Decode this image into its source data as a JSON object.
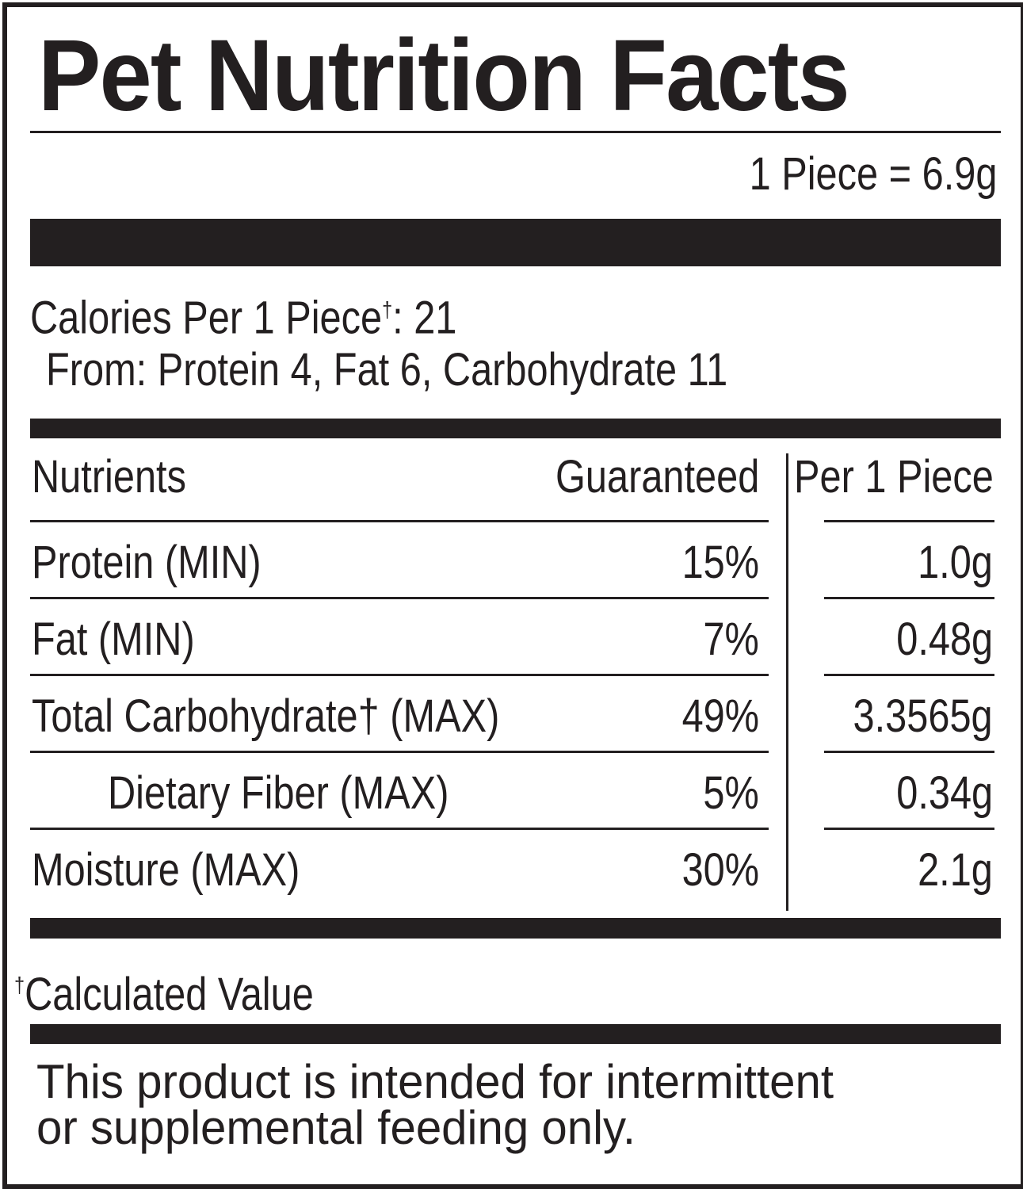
{
  "title": "Pet Nutrition Facts",
  "serving": "1 Piece = 6.9g",
  "calories": {
    "line": "Calories Per 1 Piece",
    "dagger": "†",
    "value": ": 21",
    "from": "From: Protein 4, Fat 6, Carbohydrate 11"
  },
  "table": {
    "headers": {
      "nutrients": "Nutrients",
      "guaranteed": "Guaranteed",
      "per_piece": "Per 1 Piece"
    },
    "rows": [
      {
        "name": "Protein (MIN)",
        "guaranteed": "15%",
        "per_piece": "1.0g"
      },
      {
        "name": "Fat (MIN)",
        "guaranteed": "7%",
        "per_piece": "0.48g"
      },
      {
        "name": "Total Carbohydrate† (MAX)",
        "guaranteed": "49%",
        "per_piece": "3.3565g"
      },
      {
        "name": "Dietary Fiber (MAX)",
        "guaranteed": "5%",
        "per_piece": "0.34g"
      },
      {
        "name": "Moisture (MAX)",
        "guaranteed": "30%",
        "per_piece": "2.1g"
      }
    ]
  },
  "footnote": {
    "dagger": "†",
    "text": "Calculated Value"
  },
  "disclaimer": {
    "line1": "This product is intended for intermittent",
    "line2": "or supplemental feeding only."
  },
  "colors": {
    "ink": "#231f20",
    "background": "#ffffff"
  }
}
